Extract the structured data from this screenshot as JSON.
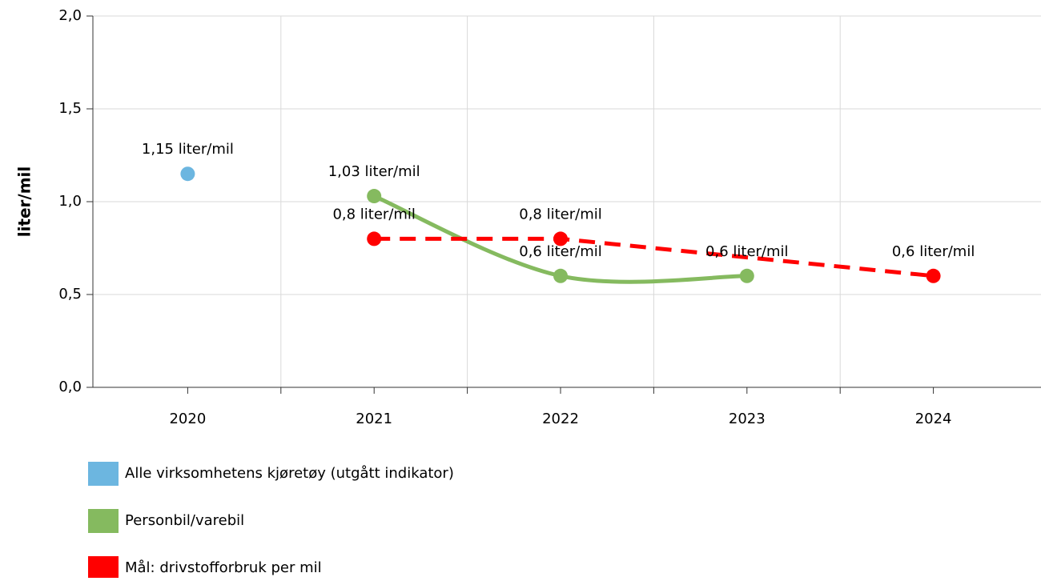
{
  "chart_data": {
    "type": "line",
    "y_label": "liter/mil",
    "categories": [
      "2020",
      "2021",
      "2022",
      "2023",
      "2024"
    ],
    "series": [
      {
        "name": "Alle virksomhetens kjøretøy (utgått indikator)",
        "color": "#6cb6e0",
        "values": [
          1.15,
          null,
          null,
          null,
          null
        ],
        "value_labels": [
          "1,15 liter/mil",
          null,
          null,
          null,
          null
        ]
      },
      {
        "name": "Personbil/varebil",
        "color": "#85ba5f",
        "smooth": true,
        "values": [
          null,
          1.03,
          0.6,
          0.6,
          null
        ],
        "value_labels": [
          null,
          "1,03 liter/mil",
          "0,6 liter/mil",
          "0,6 liter/mil",
          null
        ]
      },
      {
        "name": "Mål: drivstofforbruk per mil",
        "color": "#ff0000",
        "dashed": true,
        "connect_gaps": true,
        "values": [
          null,
          0.8,
          0.8,
          null,
          0.6
        ],
        "value_labels": [
          null,
          "0,8 liter/mil",
          "0,8 liter/mil",
          null,
          "0,6 liter/mil"
        ]
      }
    ],
    "ylim": [
      0,
      2
    ],
    "yticks": [
      {
        "value": 0,
        "label": "0,0"
      },
      {
        "value": 0.5,
        "label": "0,5"
      },
      {
        "value": 1,
        "label": "1,0"
      },
      {
        "value": 1.5,
        "label": "1,5"
      },
      {
        "value": 2,
        "label": "2,0"
      }
    ],
    "grid": true,
    "legend": "bottom"
  }
}
